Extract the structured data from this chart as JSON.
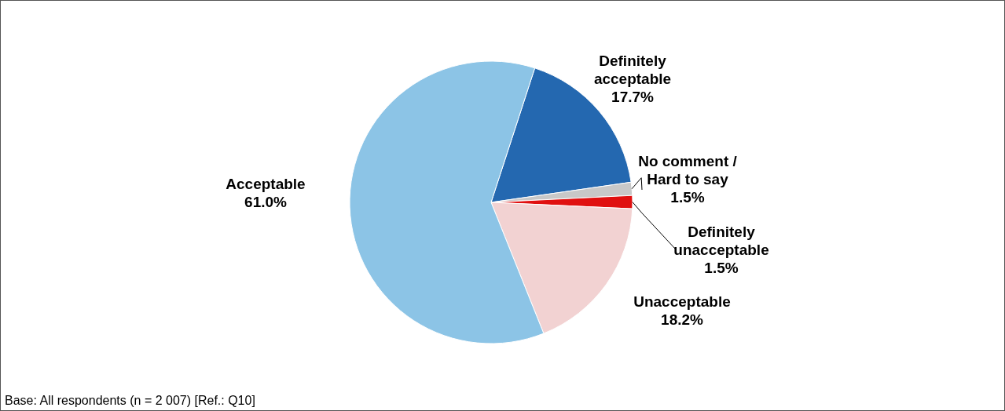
{
  "chart_data": {
    "type": "pie",
    "categories": [
      "Definitely acceptable",
      "No comment / Hard to say",
      "Definitely unacceptable",
      "Unacceptable",
      "Acceptable"
    ],
    "values": [
      17.7,
      1.5,
      1.5,
      18.2,
      61.0
    ],
    "value_labels": [
      "17.7%",
      "1.5%",
      "1.5%",
      "18.2%",
      "61.0%"
    ],
    "colors": [
      "#2468b0",
      "#c8c8c8",
      "#e01010",
      "#f2d2d2",
      "#8cc4e6"
    ],
    "annotations": [
      "Base: All respondents (n = 2 007) [Ref.: Q10]"
    ]
  }
}
